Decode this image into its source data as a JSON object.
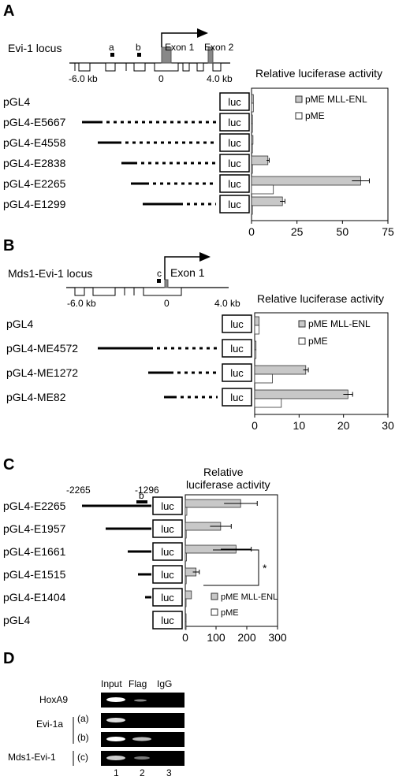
{
  "panels": {
    "A": "A",
    "B": "B",
    "C": "C",
    "D": "D"
  },
  "panelA": {
    "locus_label": "Evi-1 locus",
    "site_a": "a",
    "site_b": "b",
    "exon1": "Exon 1",
    "exon2": "Exon 2",
    "tick_left": "-6.0 kb",
    "tick_mid": "0",
    "tick_right": "4.0 kb",
    "chart_title": "Relative luciferase activity",
    "constructs": [
      "pGL4",
      "pGL4-E5667",
      "pGL4-E4558",
      "pGL4-E2838",
      "pGL4-E2265",
      "pGL4-E1299"
    ],
    "luc": "luc",
    "legend": [
      "pME MLL-ENL",
      "pME"
    ],
    "xticks": [
      "0",
      "25",
      "50",
      "75"
    ]
  },
  "panelB": {
    "locus_label": "Mds1-Evi-1 locus",
    "site_c": "c",
    "exon1": "Exon 1",
    "tick_left": "-6.0 kb",
    "tick_mid": "0",
    "tick_right": "4.0 kb",
    "chart_title": "Relative luciferase activity",
    "constructs": [
      "pGL4",
      "pGL4-ME4572",
      "pGL4-ME1272",
      "pGL4-ME82"
    ],
    "luc": "luc",
    "legend": [
      "pME MLL-ENL",
      "pME"
    ],
    "xticks": [
      "0",
      "10",
      "20",
      "30"
    ]
  },
  "panelC": {
    "pos_left": "-2265",
    "pos_right": "-1296",
    "site_b": "b",
    "chart_title_1": "Relative",
    "chart_title_2": "luciferase activity",
    "constructs": [
      "pGL4-E2265",
      "pGL4-E1957",
      "pGL4-E1661",
      "pGL4-E1515",
      "pGL4-E1404",
      "pGL4"
    ],
    "luc": "luc",
    "legend": [
      "pME MLL-ENL",
      "pME"
    ],
    "xticks": [
      "0",
      "100",
      "200",
      "300"
    ],
    "significance": "*"
  },
  "panelD": {
    "lanes_header": [
      "Input",
      "Flag",
      "IgG"
    ],
    "rows": [
      "HoxA9",
      "Evi-1a",
      "Mds1-Evi-1"
    ],
    "sub": [
      "(a)",
      "(b)",
      "(c)"
    ],
    "lane_numbers": [
      "1",
      "2",
      "3"
    ]
  },
  "chart_data": [
    {
      "type": "bar",
      "title": "Relative luciferase activity",
      "categories": [
        "pGL4",
        "pGL4-E5667",
        "pGL4-E4558",
        "pGL4-E2838",
        "pGL4-E2265",
        "pGL4-E1299"
      ],
      "series": [
        {
          "name": "pME MLL-ENL",
          "values": [
            1,
            0.5,
            0.8,
            9,
            60,
            17
          ]
        },
        {
          "name": "pME",
          "values": [
            1,
            0.5,
            0.5,
            0.5,
            12,
            0.5
          ]
        }
      ],
      "xlim": [
        0,
        75
      ]
    },
    {
      "type": "bar",
      "title": "Relative luciferase activity",
      "categories": [
        "pGL4",
        "pGL4-ME4572",
        "pGL4-ME1272",
        "pGL4-ME82"
      ],
      "series": [
        {
          "name": "pME MLL-ENL",
          "values": [
            1,
            0.3,
            11.5,
            21
          ]
        },
        {
          "name": "pME",
          "values": [
            1,
            0.3,
            4,
            6
          ]
        }
      ],
      "xlim": [
        0,
        30
      ]
    },
    {
      "type": "bar",
      "title": "Relative luciferase activity",
      "categories": [
        "pGL4-E2265",
        "pGL4-E1957",
        "pGL4-E1661",
        "pGL4-E1515",
        "pGL4-E1404",
        "pGL4"
      ],
      "series": [
        {
          "name": "pME MLL-ENL",
          "values": [
            180,
            115,
            165,
            35,
            20,
            1
          ]
        },
        {
          "name": "pME",
          "values": [
            5,
            3,
            4,
            3,
            2,
            1
          ]
        }
      ],
      "xlim": [
        0,
        300
      ]
    }
  ]
}
